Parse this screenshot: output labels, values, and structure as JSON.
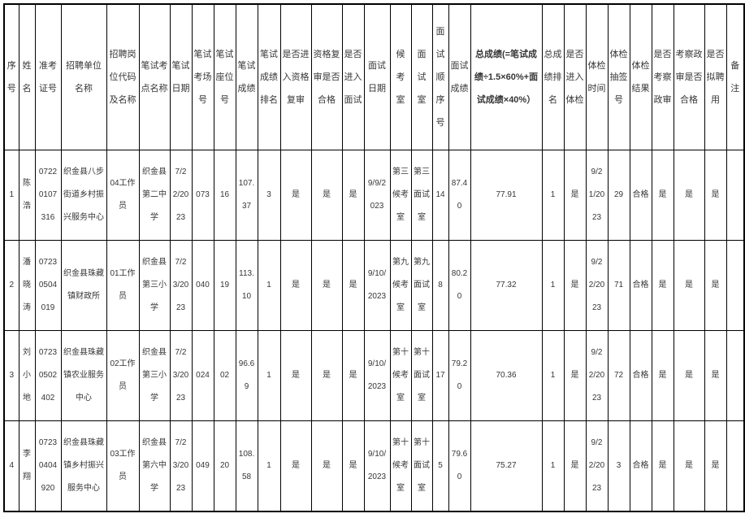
{
  "colors": {
    "grid": "#000000",
    "text": "#363636",
    "background": "#ffffff"
  },
  "table": {
    "headers": [
      "序号",
      "姓名",
      "准考证号",
      "招聘单位名称",
      "招聘岗位代码及名称",
      "笔试考点名称",
      "笔试日期",
      "笔试考场号",
      "笔试座位号",
      "笔试成绩",
      "笔试成绩排名",
      "是否进入资格复审",
      "资格复审是否合格",
      "是否进入面试",
      "面试日期",
      "候考室",
      "面试室",
      "面试顺序号",
      "面试成绩",
      "总成绩(=笔试成绩÷1.5×60%+面试成绩×40%）",
      "总成绩排名",
      "是否进入体检",
      "体检时间",
      "体检抽签号",
      "体检结果",
      "是否考察政审",
      "考察政审是否合格",
      "是否拟聘用",
      "备注"
    ],
    "formula_header_index": 19,
    "rows": [
      [
        "1",
        "陈浩",
        "07220107316",
        "织金县八步街道乡村振兴服务中心",
        "04工作员",
        "织金县第二中学",
        "7/22/2023",
        "073",
        "16",
        "107.37",
        "3",
        "是",
        "是",
        "是",
        "9/9/2023",
        "第三候考室",
        "第三面试室",
        "14",
        "87.40",
        "77.91",
        "1",
        "是",
        "9/21/2023",
        "29",
        "合格",
        "是",
        "是",
        "是",
        ""
      ],
      [
        "2",
        "潘晓涛",
        "07230504019",
        "织金县珠藏镇财政所",
        "01工作员",
        "织金县第三小学",
        "7/23/2023",
        "040",
        "19",
        "113.10",
        "1",
        "是",
        "是",
        "是",
        "9/10/2023",
        "第九候考室",
        "第九面试室",
        "8",
        "80.20",
        "77.32",
        "1",
        "是",
        "9/22/2023",
        "71",
        "合格",
        "是",
        "是",
        "是",
        ""
      ],
      [
        "3",
        "刘小地",
        "07230502402",
        "织金县珠藏镇农业服务中心",
        "02工作员",
        "织金县第三小学",
        "7/23/2023",
        "024",
        "02",
        "96.69",
        "1",
        "是",
        "是",
        "是",
        "9/10/2023",
        "第十候考室",
        "第十面试室",
        "17",
        "79.20",
        "70.36",
        "1",
        "是",
        "9/22/2023",
        "72",
        "合格",
        "是",
        "是",
        "是",
        ""
      ],
      [
        "4",
        "李翔",
        "07230404920",
        "织金县珠藏镇乡村振兴服务中心",
        "03工作员",
        "织金县第六中学",
        "7/23/2023",
        "049",
        "20",
        "108.58",
        "1",
        "是",
        "是",
        "是",
        "9/10/2023",
        "第十候考室",
        "第十面试室",
        "5",
        "79.60",
        "75.27",
        "1",
        "是",
        "9/22/2023",
        "3",
        "合格",
        "是",
        "是",
        "是",
        ""
      ]
    ]
  }
}
